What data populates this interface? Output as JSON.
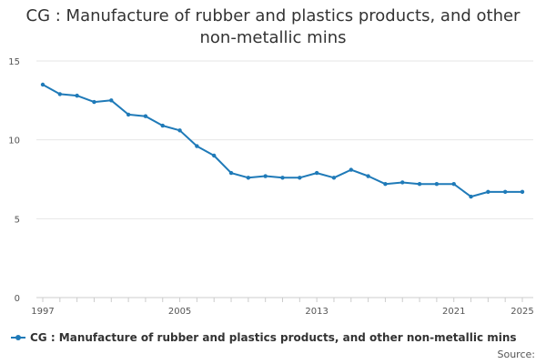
{
  "chart_data": {
    "type": "line",
    "title": "CG : Manufacture of rubber and plastics products, and other non-metallic mins",
    "xlabel": "",
    "ylabel": "",
    "ylim": [
      0,
      15
    ],
    "yticks": [
      0,
      5,
      10,
      15
    ],
    "xticks": [
      1997,
      2005,
      2013,
      2021,
      2025
    ],
    "grid": true,
    "legend_position": "bottom",
    "series": [
      {
        "name": "CG : Manufacture of rubber and plastics products, and other non-metallic mins",
        "color": "#1f7ab8",
        "x": [
          1997,
          1998,
          1999,
          2000,
          2001,
          2002,
          2003,
          2004,
          2005,
          2006,
          2007,
          2008,
          2009,
          2010,
          2011,
          2012,
          2013,
          2014,
          2015,
          2016,
          2017,
          2018,
          2019,
          2020,
          2021,
          2022,
          2023,
          2024,
          2025
        ],
        "values": [
          13.5,
          12.9,
          12.8,
          12.4,
          12.5,
          11.6,
          11.5,
          10.9,
          10.6,
          9.6,
          9.0,
          7.9,
          7.6,
          7.7,
          7.6,
          7.6,
          7.9,
          7.6,
          8.1,
          7.7,
          7.2,
          7.3,
          7.2,
          7.2,
          7.2,
          6.4,
          6.7,
          6.7,
          6.7
        ]
      }
    ]
  },
  "source_label": "Source:"
}
